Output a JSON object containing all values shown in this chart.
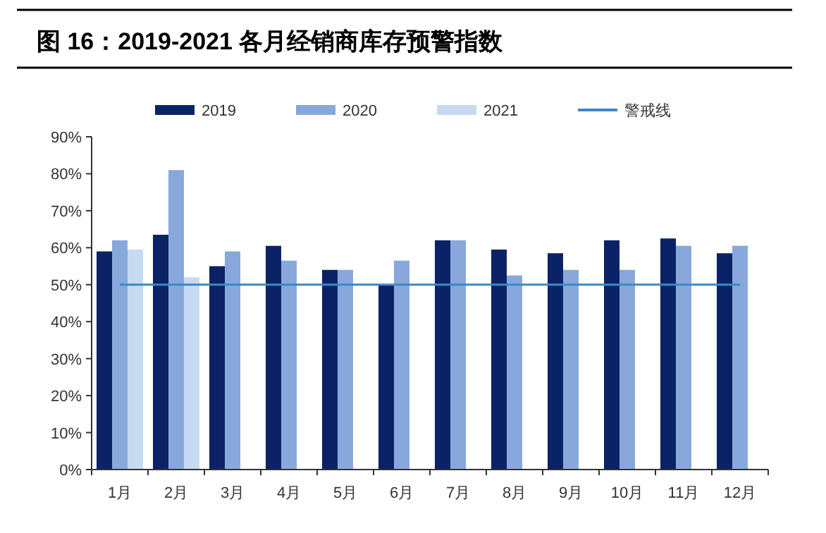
{
  "chart_data": {
    "type": "bar",
    "title": "图 16：2019-2021 各月经销商库存预警指数",
    "categories": [
      "1月",
      "2月",
      "3月",
      "4月",
      "5月",
      "6月",
      "7月",
      "8月",
      "9月",
      "10月",
      "11月",
      "12月"
    ],
    "series": [
      {
        "name": "2019",
        "color": "#0b2366",
        "values": [
          59,
          63.5,
          55,
          60.5,
          54,
          50,
          62,
          59.5,
          58.5,
          62,
          62.5,
          58.5
        ]
      },
      {
        "name": "2020",
        "color": "#88a8dc",
        "values": [
          62,
          81,
          59,
          56.5,
          54,
          56.5,
          62,
          52.5,
          54,
          54,
          60.5,
          60.5
        ]
      },
      {
        "name": "2021",
        "color": "#c6daf2",
        "values": [
          59.5,
          52,
          null,
          null,
          null,
          null,
          null,
          null,
          null,
          null,
          null,
          null
        ]
      },
      {
        "name": "警戒线",
        "type": "line",
        "color": "#3f87c4",
        "values": [
          50,
          50,
          50,
          50,
          50,
          50,
          50,
          50,
          50,
          50,
          50,
          50
        ]
      }
    ],
    "ylim": [
      0,
      90
    ],
    "yticks": [
      {
        "value": 0,
        "label": "0%"
      },
      {
        "value": 10,
        "label": "10%"
      },
      {
        "value": 20,
        "label": "20%"
      },
      {
        "value": 30,
        "label": "30%"
      },
      {
        "value": 40,
        "label": "40%"
      },
      {
        "value": 50,
        "label": "50%"
      },
      {
        "value": 60,
        "label": "60%"
      },
      {
        "value": 70,
        "label": "70%"
      },
      {
        "value": 80,
        "label": "80%"
      },
      {
        "value": 90,
        "label": "90%"
      }
    ],
    "legend": "top",
    "grid": false
  }
}
